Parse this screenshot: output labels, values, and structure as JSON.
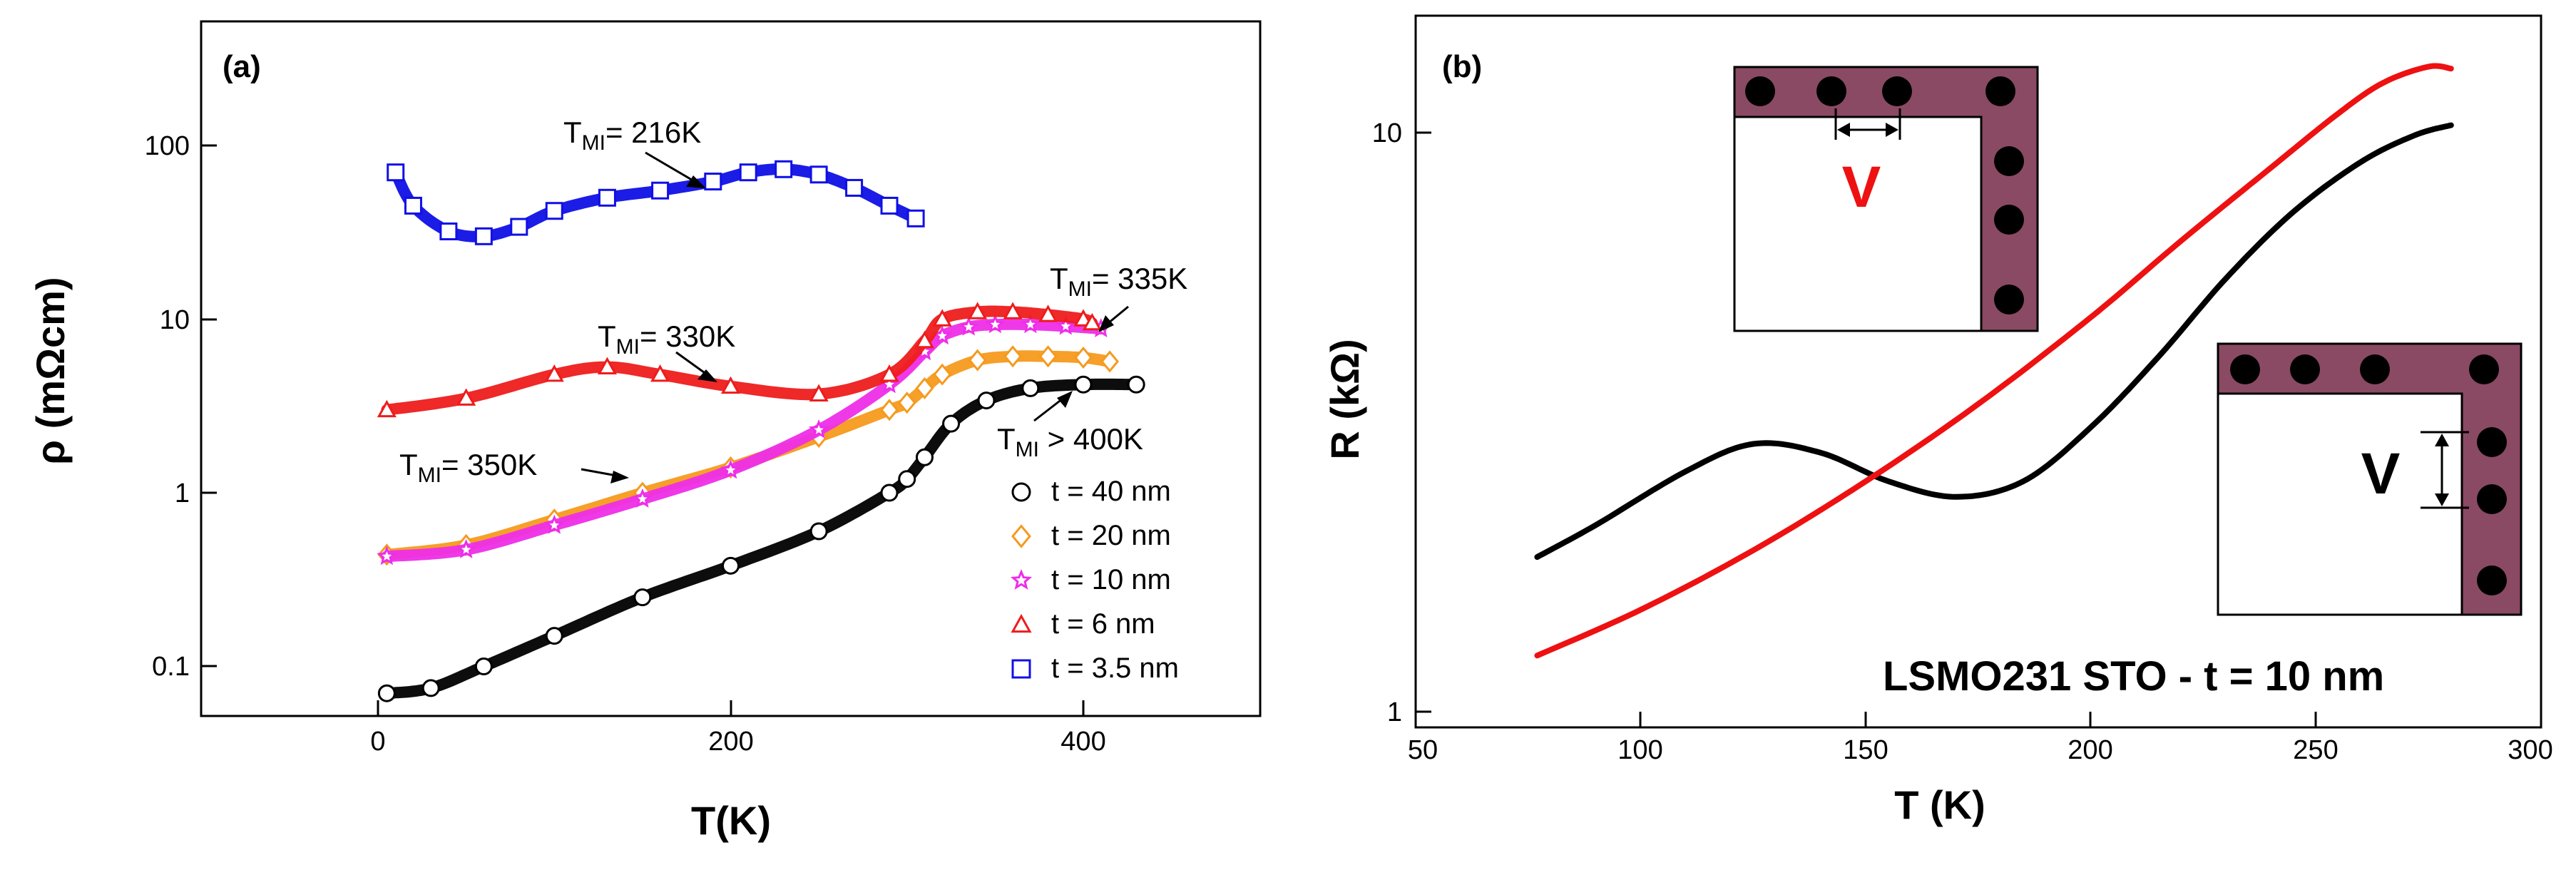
{
  "chart_data": [
    {
      "type": "scatter",
      "panel_label": "(a)",
      "xlabel": "T(K)",
      "ylabel": "ρ (mΩcm)",
      "xscale": "linear",
      "yscale": "log",
      "xlim": [
        -100,
        500
      ],
      "ylim": [
        0.05,
        500
      ],
      "xticks": [
        "0",
        "200",
        "400"
      ],
      "yticks": [
        "0.1",
        "1",
        "10",
        "100"
      ],
      "series": [
        {
          "name": "t = 40 nm",
          "marker": "circle",
          "color": "#000000",
          "x": [
            5,
            30,
            60,
            100,
            150,
            200,
            250,
            290,
            300,
            310,
            325,
            345,
            370,
            400,
            430
          ],
          "y": [
            0.07,
            0.075,
            0.1,
            0.15,
            0.25,
            0.38,
            0.6,
            1.0,
            1.2,
            1.6,
            2.5,
            3.4,
            4.0,
            4.2,
            4.2
          ]
        },
        {
          "name": "t = 20 nm",
          "marker": "diamond",
          "color": "#f59a1e",
          "x": [
            5,
            50,
            100,
            150,
            200,
            250,
            290,
            300,
            310,
            320,
            340,
            360,
            380,
            400,
            415
          ],
          "y": [
            0.44,
            0.5,
            0.7,
            1.0,
            1.4,
            2.1,
            3.0,
            3.3,
            4.0,
            4.8,
            5.8,
            6.1,
            6.1,
            6.0,
            5.7
          ]
        },
        {
          "name": "t =  10 nm",
          "marker": "star",
          "color": "#ee2ee8",
          "x": [
            5,
            50,
            100,
            150,
            200,
            250,
            290,
            310,
            320,
            335,
            350,
            370,
            390,
            410
          ],
          "y": [
            0.43,
            0.47,
            0.65,
            0.92,
            1.35,
            2.3,
            4.2,
            6.5,
            8.0,
            9.0,
            9.3,
            9.3,
            9.1,
            8.8
          ]
        },
        {
          "name": "t = 6 nm",
          "marker": "triangle",
          "color": "#ee1c1c",
          "x": [
            5,
            50,
            100,
            130,
            160,
            200,
            250,
            290,
            310,
            320,
            340,
            360,
            380,
            400,
            405
          ],
          "y": [
            3.0,
            3.5,
            4.8,
            5.3,
            4.8,
            4.1,
            3.7,
            4.8,
            7.5,
            10.0,
            11.0,
            11.0,
            10.6,
            10.0,
            9.5
          ]
        },
        {
          "name": "t = 3.5 nm",
          "marker": "square",
          "color": "#1010e6",
          "x": [
            10,
            20,
            40,
            60,
            80,
            100,
            130,
            160,
            190,
            210,
            230,
            250,
            270,
            290,
            305
          ],
          "y": [
            70,
            45,
            32,
            30,
            34,
            42,
            50,
            55,
            62,
            70,
            73,
            68,
            57,
            45,
            38
          ]
        }
      ],
      "annotations": [
        {
          "text": "T",
          "sub": "MI",
          "rest": "= 216K"
        },
        {
          "text": "T",
          "sub": "MI",
          "rest": "= 330K"
        },
        {
          "text": "T",
          "sub": "MI",
          "rest": "= 335K"
        },
        {
          "text": "T",
          "sub": "MI",
          "rest": "= 350K"
        },
        {
          "text": "T",
          "sub": "MI",
          "rest": " > 400K"
        }
      ]
    },
    {
      "type": "line",
      "panel_label": "(b)",
      "xlabel": "T (K)",
      "ylabel": "R (kΩ)",
      "xscale": "linear",
      "yscale": "log",
      "xlim": [
        50,
        300
      ],
      "ylim": [
        1,
        14
      ],
      "xticks": [
        "50",
        "100",
        "150",
        "200",
        "250",
        "300"
      ],
      "yticks": [
        "1",
        "10"
      ],
      "series": [
        {
          "name": "black",
          "color": "#000000",
          "x": [
            77,
            90,
            110,
            125,
            140,
            155,
            170,
            185,
            200,
            215,
            230,
            245,
            260,
            272,
            280
          ],
          "y": [
            1.85,
            2.1,
            2.6,
            2.9,
            2.8,
            2.5,
            2.35,
            2.5,
            3.1,
            4.1,
            5.6,
            7.3,
            8.9,
            9.9,
            10.3
          ]
        },
        {
          "name": "red",
          "color": "#ee1111",
          "x": [
            77,
            100,
            125,
            150,
            175,
            200,
            220,
            240,
            255,
            265,
            275,
            280
          ],
          "y": [
            1.25,
            1.5,
            1.9,
            2.5,
            3.4,
            4.8,
            6.5,
            8.7,
            10.8,
            12.2,
            13.0,
            12.9
          ]
        }
      ],
      "insets": [
        {
          "label": "V",
          "color": "#ee1111"
        },
        {
          "label": "V",
          "color": "#000000"
        }
      ],
      "annotation": "LSMO231 STO  -  t = 10 nm"
    }
  ]
}
